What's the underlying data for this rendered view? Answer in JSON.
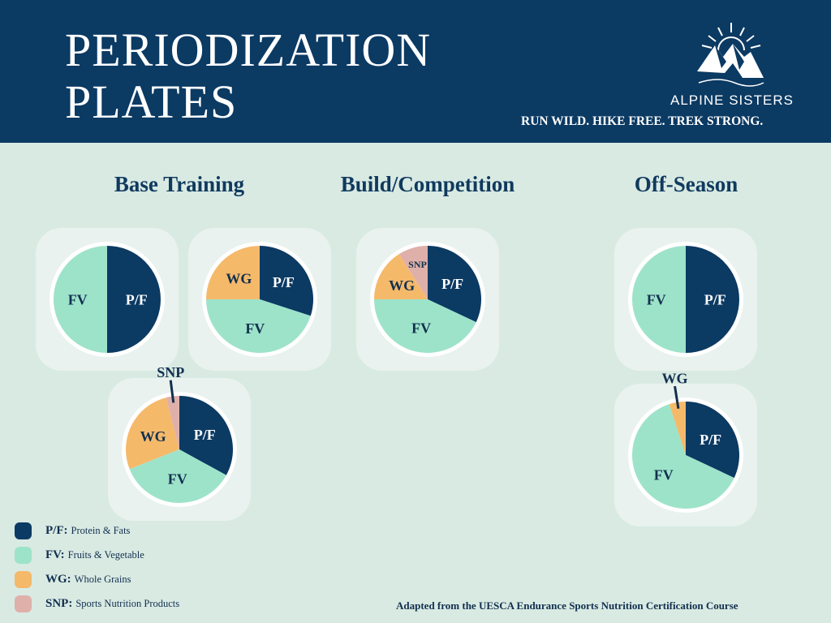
{
  "header": {
    "title_line1": "PERIODIZATION",
    "title_line2": "PLATES",
    "brand": "ALPINE SISTERS",
    "tagline": "RUN WILD. HIKE FREE. TREK STRONG."
  },
  "colors": {
    "header_bg": "#0b3a63",
    "page_bg": "#d9eae3",
    "pf": "#0b3a63",
    "fv": "#9de3ca",
    "wg": "#f5b96a",
    "snp": "#dfb0aa"
  },
  "phases": [
    {
      "label": "Base Training",
      "color": "#dfb0aa"
    },
    {
      "label": "Build/Competition",
      "color": "#9de3ca"
    },
    {
      "label": "Off-Season",
      "color": "#f5b96a"
    }
  ],
  "legend": [
    {
      "key": "P/F:",
      "desc": "Protein & Fats",
      "color": "#0b3a63"
    },
    {
      "key": "FV:",
      "desc": "Fruits & Vegetable",
      "color": "#9de3ca"
    },
    {
      "key": "WG:",
      "desc": "Whole Grains",
      "color": "#f5b96a"
    },
    {
      "key": "SNP:",
      "desc": "Sports Nutrition Products",
      "color": "#dfb0aa"
    }
  ],
  "source": "Adapted from the UESCA Endurance Sports Nutrition Certification Course",
  "chart_data": [
    {
      "type": "pie",
      "phase": "Base Training",
      "plate": 1,
      "slices": [
        {
          "label": "P/F",
          "value": 50
        },
        {
          "label": "FV",
          "value": 50
        }
      ]
    },
    {
      "type": "pie",
      "phase": "Base Training",
      "plate": 2,
      "slices": [
        {
          "label": "P/F",
          "value": 30
        },
        {
          "label": "FV",
          "value": 45
        },
        {
          "label": "WG",
          "value": 25
        }
      ]
    },
    {
      "type": "pie",
      "phase": "Base Training",
      "plate": 3,
      "slices": [
        {
          "label": "P/F",
          "value": 33
        },
        {
          "label": "FV",
          "value": 36
        },
        {
          "label": "WG",
          "value": 27
        },
        {
          "label": "SNP",
          "value": 4
        }
      ]
    },
    {
      "type": "pie",
      "phase": "Build/Competition",
      "plate": 1,
      "slices": [
        {
          "label": "P/F",
          "value": 32
        },
        {
          "label": "FV",
          "value": 43
        },
        {
          "label": "WG",
          "value": 16
        },
        {
          "label": "SNP",
          "value": 9
        }
      ]
    },
    {
      "type": "pie",
      "phase": "Off-Season",
      "plate": 1,
      "slices": [
        {
          "label": "P/F",
          "value": 50
        },
        {
          "label": "FV",
          "value": 50
        }
      ]
    },
    {
      "type": "pie",
      "phase": "Off-Season",
      "plate": 2,
      "slices": [
        {
          "label": "P/F",
          "value": 32
        },
        {
          "label": "FV",
          "value": 63
        },
        {
          "label": "WG",
          "value": 5
        }
      ]
    }
  ]
}
